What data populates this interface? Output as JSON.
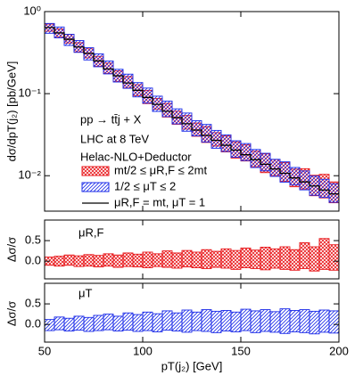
{
  "chart_data": [
    {
      "type": "histogram",
      "log_y": true,
      "ylabel": "dσ/dpT(j₂) [pb/GeV]",
      "annotations": [
        "pp → tt̄j + X",
        "LHC at 8 TeV",
        "Helac-NLO+Deductor"
      ],
      "bins": [
        50,
        55,
        60,
        65,
        70,
        75,
        80,
        85,
        90,
        95,
        100,
        105,
        110,
        115,
        120,
        125,
        130,
        135,
        140,
        145,
        150,
        155,
        160,
        165,
        170,
        175,
        180,
        185,
        190,
        195,
        200
      ],
      "ylim": [
        0.0037,
        1
      ],
      "yticks": [
        {
          "value": 1,
          "label": "10⁰"
        },
        {
          "value": 0.1,
          "label": "10⁻¹"
        },
        {
          "value": 0.01,
          "label": "10⁻²"
        }
      ],
      "series": [
        {
          "name": "mt/2 ≤ μR,F ≤ 2mt",
          "color": "#e8191c",
          "band": "chart_data.1"
        },
        {
          "name": "1/2 ≤ μT ≤ 2",
          "color": "#1c2ce8",
          "band": "chart_data.2"
        },
        {
          "name": "μR,F = mt, μT = 1",
          "color": "#000000",
          "values": [
            0.64,
            0.55,
            0.46,
            0.37,
            0.31,
            0.25,
            0.2,
            0.165,
            0.135,
            0.11,
            0.09,
            0.074,
            0.061,
            0.051,
            0.043,
            0.036,
            0.031,
            0.027,
            0.0235,
            0.0205,
            0.018,
            0.0157,
            0.0138,
            0.0121,
            0.0107,
            0.0094,
            0.0084,
            0.0075,
            0.0067,
            0.006
          ]
        }
      ]
    },
    {
      "type": "ratio",
      "label": "μR,F",
      "ylabel": "Δσ/σ",
      "color": "#e8191c",
      "ylim": [
        -0.43,
        1.0
      ],
      "yticks": [
        0.5,
        {
          "value": 0,
          "label": "0.0"
        }
      ],
      "low": [
        -0.1,
        -0.12,
        -0.1,
        -0.13,
        -0.12,
        -0.14,
        -0.12,
        -0.15,
        -0.13,
        -0.14,
        -0.16,
        -0.13,
        -0.15,
        -0.17,
        -0.14,
        -0.16,
        -0.18,
        -0.15,
        -0.17,
        -0.2,
        -0.16,
        -0.18,
        -0.21,
        -0.17,
        -0.2,
        -0.22,
        -0.18,
        -0.24,
        -0.2,
        -0.22
      ],
      "high": [
        0.1,
        0.12,
        0.15,
        0.13,
        0.16,
        0.14,
        0.18,
        0.15,
        0.2,
        0.17,
        0.22,
        0.18,
        0.25,
        0.2,
        0.26,
        0.22,
        0.28,
        0.24,
        0.3,
        0.26,
        0.32,
        0.27,
        0.34,
        0.3,
        0.35,
        0.28,
        0.45,
        0.35,
        0.55,
        0.4
      ]
    },
    {
      "type": "ratio",
      "label": "μT",
      "ylabel": "Δσ/σ",
      "color": "#1c2ce8",
      "xlabel": "pT(j₂) [GeV]",
      "ylim": [
        -0.43,
        1.0
      ],
      "yticks": [
        0.5,
        {
          "value": 0,
          "label": "0.0"
        }
      ],
      "xlim": [
        50,
        200
      ],
      "xticks": [
        50,
        100,
        150,
        200
      ],
      "low": [
        -0.15,
        -0.13,
        -0.16,
        -0.14,
        -0.17,
        -0.15,
        -0.13,
        -0.16,
        -0.14,
        -0.17,
        -0.15,
        -0.18,
        -0.14,
        -0.16,
        -0.19,
        -0.15,
        -0.17,
        -0.2,
        -0.16,
        -0.18,
        -0.15,
        -0.2,
        -0.17,
        -0.19,
        -0.22,
        -0.18,
        -0.2,
        -0.23,
        -0.19,
        -0.21
      ],
      "high": [
        0.12,
        0.18,
        0.15,
        0.2,
        0.17,
        0.22,
        0.25,
        0.2,
        0.28,
        0.24,
        0.3,
        0.26,
        0.33,
        0.28,
        0.35,
        0.3,
        0.36,
        0.32,
        0.34,
        0.3,
        0.37,
        0.33,
        0.36,
        0.31,
        0.38,
        0.34,
        0.36,
        0.32,
        0.35,
        0.33
      ]
    }
  ]
}
